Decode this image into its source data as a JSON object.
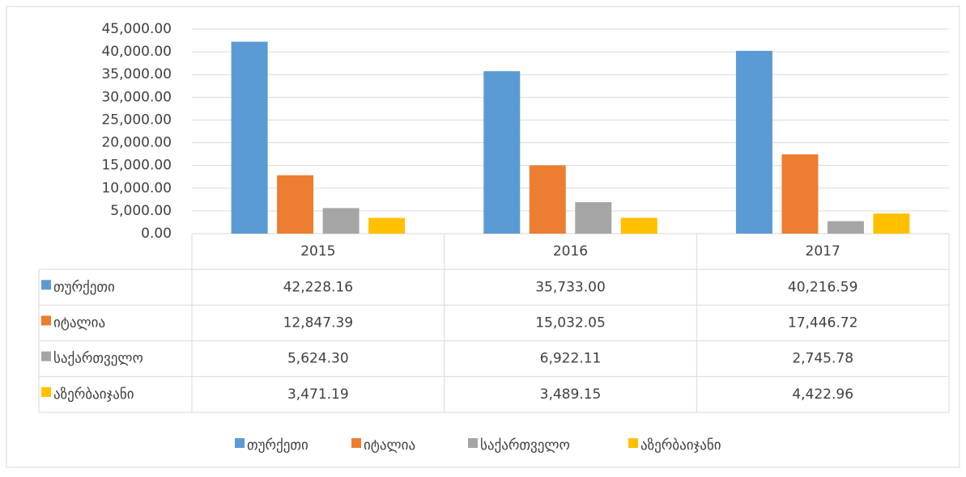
{
  "chart_data": {
    "type": "bar",
    "categories": [
      "2015",
      "2016",
      "2017"
    ],
    "series": [
      {
        "name": "თურქეთი",
        "color": "#5b9bd5",
        "values": [
          42228.16,
          35733.0,
          40216.59
        ],
        "value_labels": [
          "42,228.16",
          "35,733.00",
          "40,216.59"
        ]
      },
      {
        "name": "იტალია",
        "color": "#ed7d31",
        "values": [
          12847.39,
          15032.05,
          17446.72
        ],
        "value_labels": [
          "12,847.39",
          "15,032.05",
          "17,446.72"
        ]
      },
      {
        "name": "საქართველო",
        "color": "#a5a5a5",
        "values": [
          5624.3,
          6922.11,
          2745.78
        ],
        "value_labels": [
          "5,624.30",
          "6,922.11",
          "2,745.78"
        ]
      },
      {
        "name": "აზერბაიჯანი",
        "color": "#ffc000",
        "values": [
          3471.19,
          3489.15,
          4422.96
        ],
        "value_labels": [
          "3,471.19",
          "3,489.15",
          "4,422.96"
        ]
      }
    ],
    "ylim": [
      0,
      45000
    ],
    "yticks": [
      {
        "value": 0,
        "label": "0.00"
      },
      {
        "value": 5000,
        "label": "5,000.00"
      },
      {
        "value": 10000,
        "label": "10,000.00"
      },
      {
        "value": 15000,
        "label": "15,000.00"
      },
      {
        "value": 20000,
        "label": "20,000.00"
      },
      {
        "value": 25000,
        "label": "25,000.00"
      },
      {
        "value": 30000,
        "label": "30,000.00"
      },
      {
        "value": 35000,
        "label": "35,000.00"
      },
      {
        "value": 40000,
        "label": "40,000.00"
      },
      {
        "value": 45000,
        "label": "45,000.00"
      }
    ],
    "grid": true,
    "legend": "bottom"
  }
}
